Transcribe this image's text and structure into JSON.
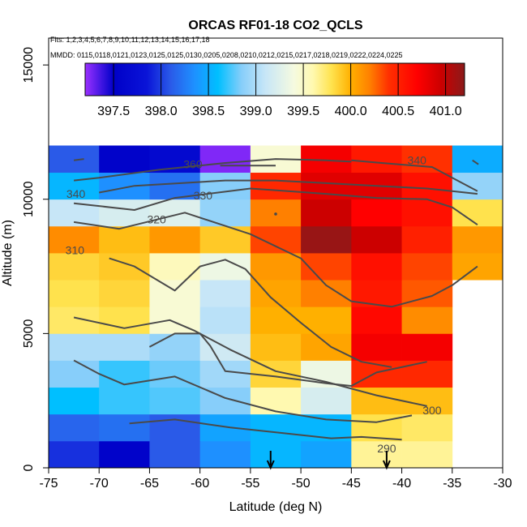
{
  "chart_data": {
    "type": "heatmap",
    "title": "ORCAS RF01-18 CO2_QCLS",
    "flights_line": "Flts: 1,2,3,4,5,6,7,8,9,10,11,12,13,14,15,16,17,18",
    "dates_line": "MMDD: 0115,0118,0121,0123,0125,0125,0130,0205,0208,0210,0212,0215,0217,0218,0219,0222,0224,0225",
    "xlabel": "Latitude (deg N)",
    "ylabel": "Altitude (m)",
    "xlim": [
      -75,
      -30
    ],
    "ylim": [
      0,
      16000
    ],
    "x_ticks": [
      -75,
      -70,
      -65,
      -60,
      -55,
      -50,
      -45,
      -40,
      -35,
      -30
    ],
    "y_ticks": [
      0,
      5000,
      10000,
      15000
    ],
    "colorbar": {
      "range": [
        397.2,
        401.2
      ],
      "ticks": [
        397.5,
        398.0,
        398.5,
        399.0,
        399.5,
        400.0,
        400.5,
        401.0
      ],
      "tick_labels": [
        "397.5",
        "398.0",
        "398.5",
        "399.0",
        "399.5",
        "400.0",
        "400.5",
        "401.0"
      ],
      "stops": [
        {
          "v": 397.2,
          "c": "#9b30ff"
        },
        {
          "v": 397.35,
          "c": "#4b19e6"
        },
        {
          "v": 397.5,
          "c": "#0000c8"
        },
        {
          "v": 397.85,
          "c": "#0a14d8"
        },
        {
          "v": 398.1,
          "c": "#2a5ae8"
        },
        {
          "v": 398.35,
          "c": "#1e90ff"
        },
        {
          "v": 398.6,
          "c": "#00bfff"
        },
        {
          "v": 398.85,
          "c": "#87cefa"
        },
        {
          "v": 399.1,
          "c": "#c7e6f7"
        },
        {
          "v": 399.4,
          "c": "#f5fae0"
        },
        {
          "v": 399.6,
          "c": "#fff9b0"
        },
        {
          "v": 399.8,
          "c": "#ffe24d"
        },
        {
          "v": 400.0,
          "c": "#ffb000"
        },
        {
          "v": 400.2,
          "c": "#ff8000"
        },
        {
          "v": 400.4,
          "c": "#ff3000"
        },
        {
          "v": 400.7,
          "c": "#ff0000"
        },
        {
          "v": 400.95,
          "c": "#cc0000"
        },
        {
          "v": 401.2,
          "c": "#8b1a1a"
        }
      ]
    },
    "cell_lat_edges": [
      -75,
      -70,
      -65,
      -60,
      -55,
      -50,
      -45,
      -40,
      -35,
      -30
    ],
    "cell_alt_edges": [
      0,
      1000,
      2000,
      3000,
      4000,
      5000,
      6000,
      7000,
      8000,
      9000,
      10000,
      11000,
      12000
    ],
    "co2_grid": [
      [
        397.95,
        397.55,
        398.1,
        398.35,
        398.55,
        398.45,
        399.65,
        399.65,
        null
      ],
      [
        398.15,
        398.2,
        398.1,
        398.45,
        398.55,
        398.55,
        399.8,
        399.75,
        null
      ],
      [
        398.6,
        398.7,
        398.75,
        398.85,
        399.6,
        399.2,
        399.95,
        399.95,
        null
      ],
      [
        398.85,
        398.7,
        398.8,
        398.95,
        399.85,
        399.35,
        400.45,
        400.45,
        null
      ],
      [
        399.0,
        399.0,
        398.9,
        399.15,
        399.95,
        400.05,
        400.75,
        400.75,
        null
      ],
      [
        399.75,
        399.8,
        399.45,
        399.05,
        400.0,
        400.0,
        400.65,
        400.15,
        null
      ],
      [
        399.8,
        399.85,
        399.45,
        399.1,
        400.05,
        400.2,
        400.55,
        400.3,
        null
      ],
      [
        399.85,
        399.9,
        399.55,
        399.35,
        400.1,
        400.35,
        400.6,
        400.35,
        400.05
      ],
      [
        400.15,
        399.95,
        400.1,
        399.9,
        400.35,
        401.15,
        400.95,
        400.5,
        400.1
      ],
      [
        399.1,
        399.2,
        399.25,
        398.9,
        400.2,
        400.95,
        400.7,
        400.6,
        399.8
      ],
      [
        398.55,
        398.35,
        398.2,
        398.85,
        400.45,
        400.85,
        400.85,
        400.6,
        398.9
      ],
      [
        398.1,
        397.55,
        397.65,
        397.25,
        399.45,
        400.75,
        400.55,
        400.4,
        398.5
      ]
    ],
    "contours": [
      {
        "label": "290",
        "label_pos": [
          -41.5,
          730
        ],
        "points": [
          [
            -67,
            1650
          ],
          [
            -62.5,
            1800
          ],
          [
            -57,
            1500
          ],
          [
            -52,
            1300
          ],
          [
            -47,
            1100
          ],
          [
            -44,
            1150
          ],
          [
            -40,
            1050
          ]
        ]
      },
      {
        "label": "300",
        "label_pos": [
          -37,
          2150
        ],
        "points": [
          [
            -72.5,
            4000
          ],
          [
            -70,
            3500
          ],
          [
            -67.5,
            3100
          ],
          [
            -62.5,
            3400
          ],
          [
            -57.5,
            2600
          ],
          [
            -52.5,
            2100
          ],
          [
            -47.5,
            1800
          ],
          [
            -42.5,
            1700
          ],
          [
            -39,
            1950
          ]
        ]
      },
      {
        "label": "",
        "label_pos": null,
        "points": [
          [
            -72.5,
            5600
          ],
          [
            -67.5,
            5200
          ],
          [
            -63,
            5500
          ],
          [
            -60.5,
            5100
          ],
          [
            -57,
            4400
          ],
          [
            -52.5,
            3600
          ],
          [
            -47.5,
            3200
          ],
          [
            -42.5,
            2700
          ],
          [
            -37.5,
            2300
          ]
        ]
      },
      {
        "label": "",
        "label_pos": null,
        "points": [
          [
            -65,
            4500
          ],
          [
            -62.5,
            5000
          ],
          [
            -60,
            5000
          ],
          [
            -59,
            4550
          ],
          [
            -57.5,
            3600
          ],
          [
            -52.5,
            3400
          ],
          [
            -47.5,
            3150
          ],
          [
            -45,
            3050
          ],
          [
            -42.5,
            3550
          ],
          [
            -37.5,
            3950
          ]
        ]
      },
      {
        "label": "310",
        "label_pos": [
          -72.4,
          8100
        ],
        "points": [
          [
            -69,
            7800
          ],
          [
            -66.5,
            7500
          ],
          [
            -62.5,
            6600
          ],
          [
            -60,
            7500
          ],
          [
            -57.5,
            7750
          ],
          [
            -55.5,
            7400
          ],
          [
            -53,
            6350
          ],
          [
            -50,
            5400
          ],
          [
            -47,
            4500
          ],
          [
            -44,
            3950
          ],
          [
            -41,
            3750
          ]
        ]
      },
      {
        "label": "320",
        "label_pos": [
          -64.3,
          9250
        ],
        "points": [
          [
            -72.5,
            9150
          ],
          [
            -68,
            8900
          ],
          [
            -61.5,
            9500
          ],
          [
            -55,
            8700
          ],
          [
            -50,
            7800
          ],
          [
            -47.5,
            6800
          ],
          [
            -45,
            6200
          ],
          [
            -41,
            6000
          ],
          [
            -37,
            6400
          ],
          [
            -35,
            6800
          ],
          [
            -32.5,
            7500
          ]
        ]
      },
      {
        "label": "330",
        "label_pos": [
          -59.7,
          10150
        ],
        "points": [
          [
            -72.5,
            9850
          ],
          [
            -66.5,
            9600
          ],
          [
            -62.5,
            10050
          ],
          [
            -55,
            10400
          ],
          [
            -47.5,
            10200
          ],
          [
            -42.5,
            10050
          ],
          [
            -37.5,
            10000
          ],
          [
            -35,
            9700
          ],
          [
            -32.5,
            9050
          ]
        ]
      },
      {
        "label": "340",
        "label_pos": [
          -72.3,
          10200
        ],
        "points": [
          [
            -70,
            10250
          ],
          [
            -66.5,
            10500
          ],
          [
            -57.5,
            10700
          ],
          [
            -52.5,
            10700
          ],
          [
            -47.5,
            10600
          ],
          [
            -42.5,
            10500
          ],
          [
            -37.5,
            10400
          ],
          [
            -35,
            10300
          ],
          [
            -32.5,
            10200
          ]
        ]
      },
      {
        "label": "340",
        "label_pos": [
          -38.5,
          11450
        ],
        "points": [
          [
            -45,
            11450
          ],
          [
            -42,
            11350
          ],
          [
            -37,
            11200
          ],
          [
            -35,
            10800
          ],
          [
            -32.5,
            10300
          ]
        ]
      },
      {
        "label": "360",
        "label_pos": [
          -60.7,
          11300
        ],
        "points": [
          [
            -72.5,
            10700
          ],
          [
            -70,
            10800
          ],
          [
            -64,
            11100
          ],
          [
            -57.5,
            11350
          ],
          [
            -52.5,
            11500
          ],
          [
            -47.5,
            11450
          ],
          [
            -45,
            11400
          ]
        ]
      },
      {
        "label": "",
        "label_pos": null,
        "points": [
          [
            -72.5,
            11450
          ],
          [
            -71.5,
            11500
          ]
        ]
      },
      {
        "label": "",
        "label_pos": null,
        "points": [
          [
            -58,
            11250
          ],
          [
            -52.5,
            11250
          ]
        ]
      },
      {
        "label": "",
        "label_pos": null,
        "points": [
          [
            -33,
            11450
          ],
          [
            -32.4,
            11300
          ]
        ]
      }
    ],
    "contour_dots": [
      [
        -52.5,
        9450
      ]
    ],
    "arrows": [
      {
        "lat": -53.0
      },
      {
        "lat": -41.5
      }
    ]
  }
}
